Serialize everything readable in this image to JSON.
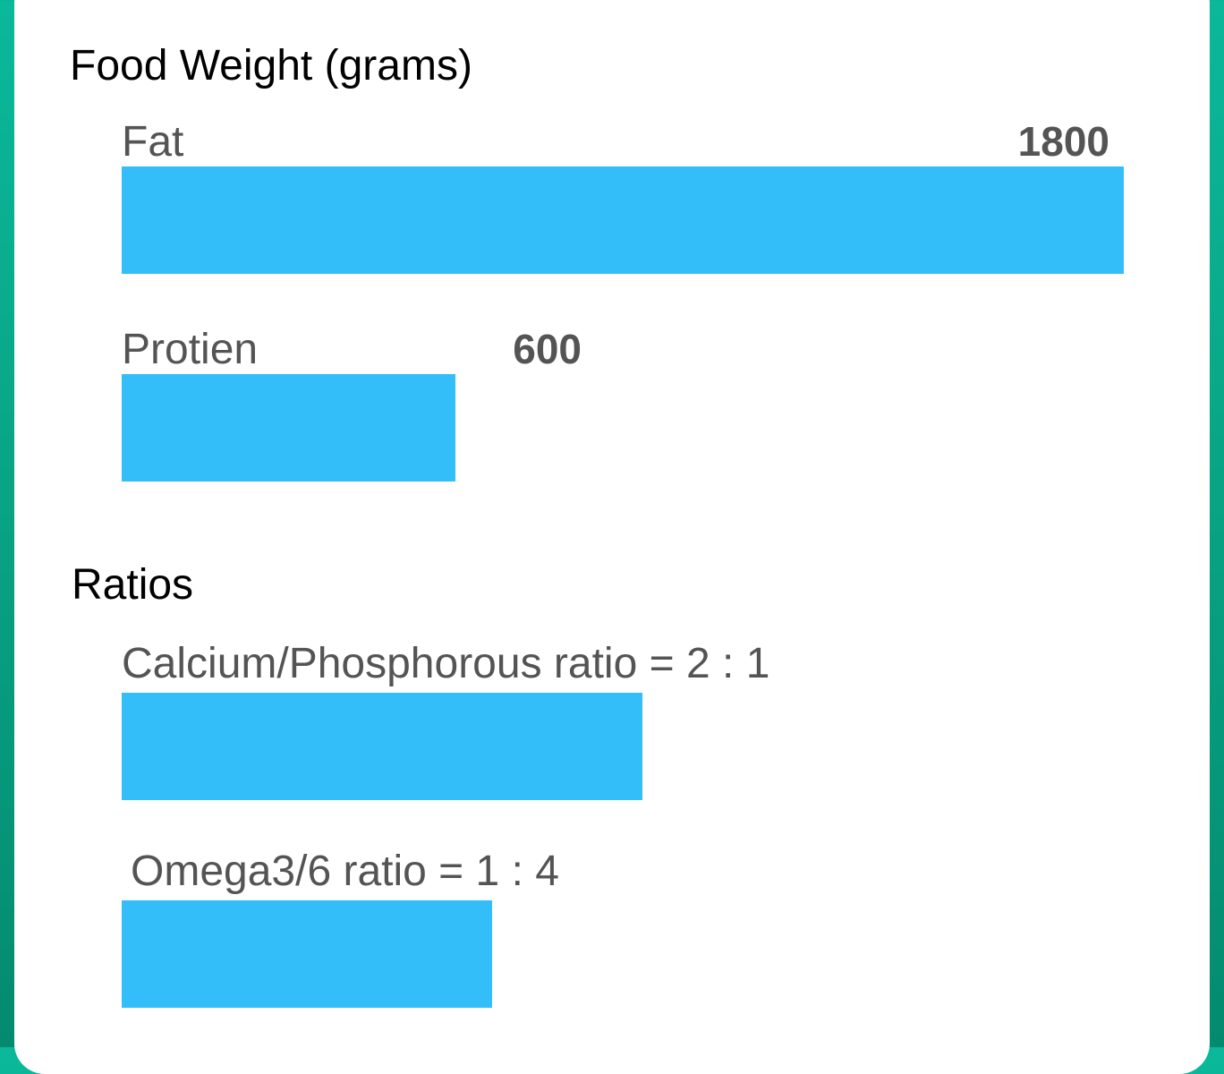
{
  "colors": {
    "bar": "#33bdf9",
    "label_text": "#545454",
    "section_title": "#000000",
    "background": "#08a383",
    "card": "#ffffff"
  },
  "food_weight": {
    "title": "Food Weight (grams)",
    "scale_max": 1800,
    "bars": [
      {
        "label": "Fat",
        "value": "1800",
        "fill_fraction": 1.0
      },
      {
        "label": "Protien",
        "value": "600",
        "fill_fraction": 0.333
      }
    ]
  },
  "ratios": {
    "title": "Ratios",
    "bars": [
      {
        "label": "Calcium/Phosphorous ratio = 2 : 1",
        "fill_fraction": 0.52
      },
      {
        "label": "Omega3/6 ratio = 1 : 4",
        "fill_fraction": 0.37
      }
    ]
  }
}
